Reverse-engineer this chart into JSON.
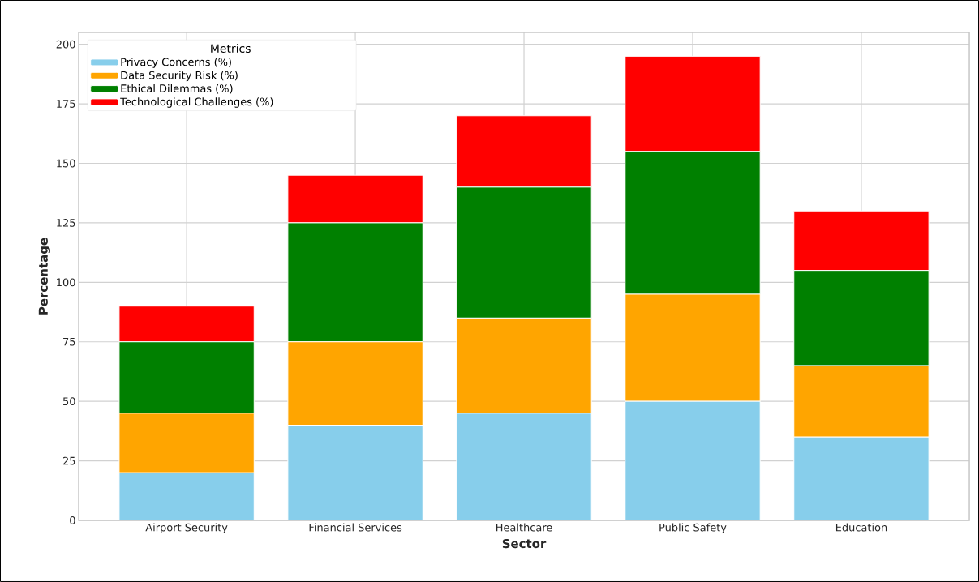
{
  "chart_data": {
    "type": "bar",
    "stacked": true,
    "xlabel": "Sector",
    "ylabel": "Percentage",
    "legend_title": "Metrics",
    "legend": "top left",
    "grid": true,
    "categories": [
      "Airport Security",
      "Financial Services",
      "Healthcare",
      "Public Safety",
      "Education"
    ],
    "series": [
      {
        "name": "Privacy Concerns (%)",
        "color": "#87ceeb",
        "values": [
          20,
          40,
          45,
          50,
          35
        ]
      },
      {
        "name": "Data Security Risk (%)",
        "color": "#ffa500",
        "values": [
          25,
          35,
          40,
          45,
          30
        ]
      },
      {
        "name": "Ethical Dilemmas (%)",
        "color": "#008000",
        "values": [
          30,
          50,
          55,
          60,
          40
        ]
      },
      {
        "name": "Technological Challenges (%)",
        "color": "#ff0000",
        "values": [
          15,
          20,
          30,
          40,
          25
        ]
      }
    ],
    "ylim": [
      0,
      205
    ],
    "yticks": [
      0,
      25,
      50,
      75,
      100,
      125,
      150,
      175,
      200
    ]
  }
}
